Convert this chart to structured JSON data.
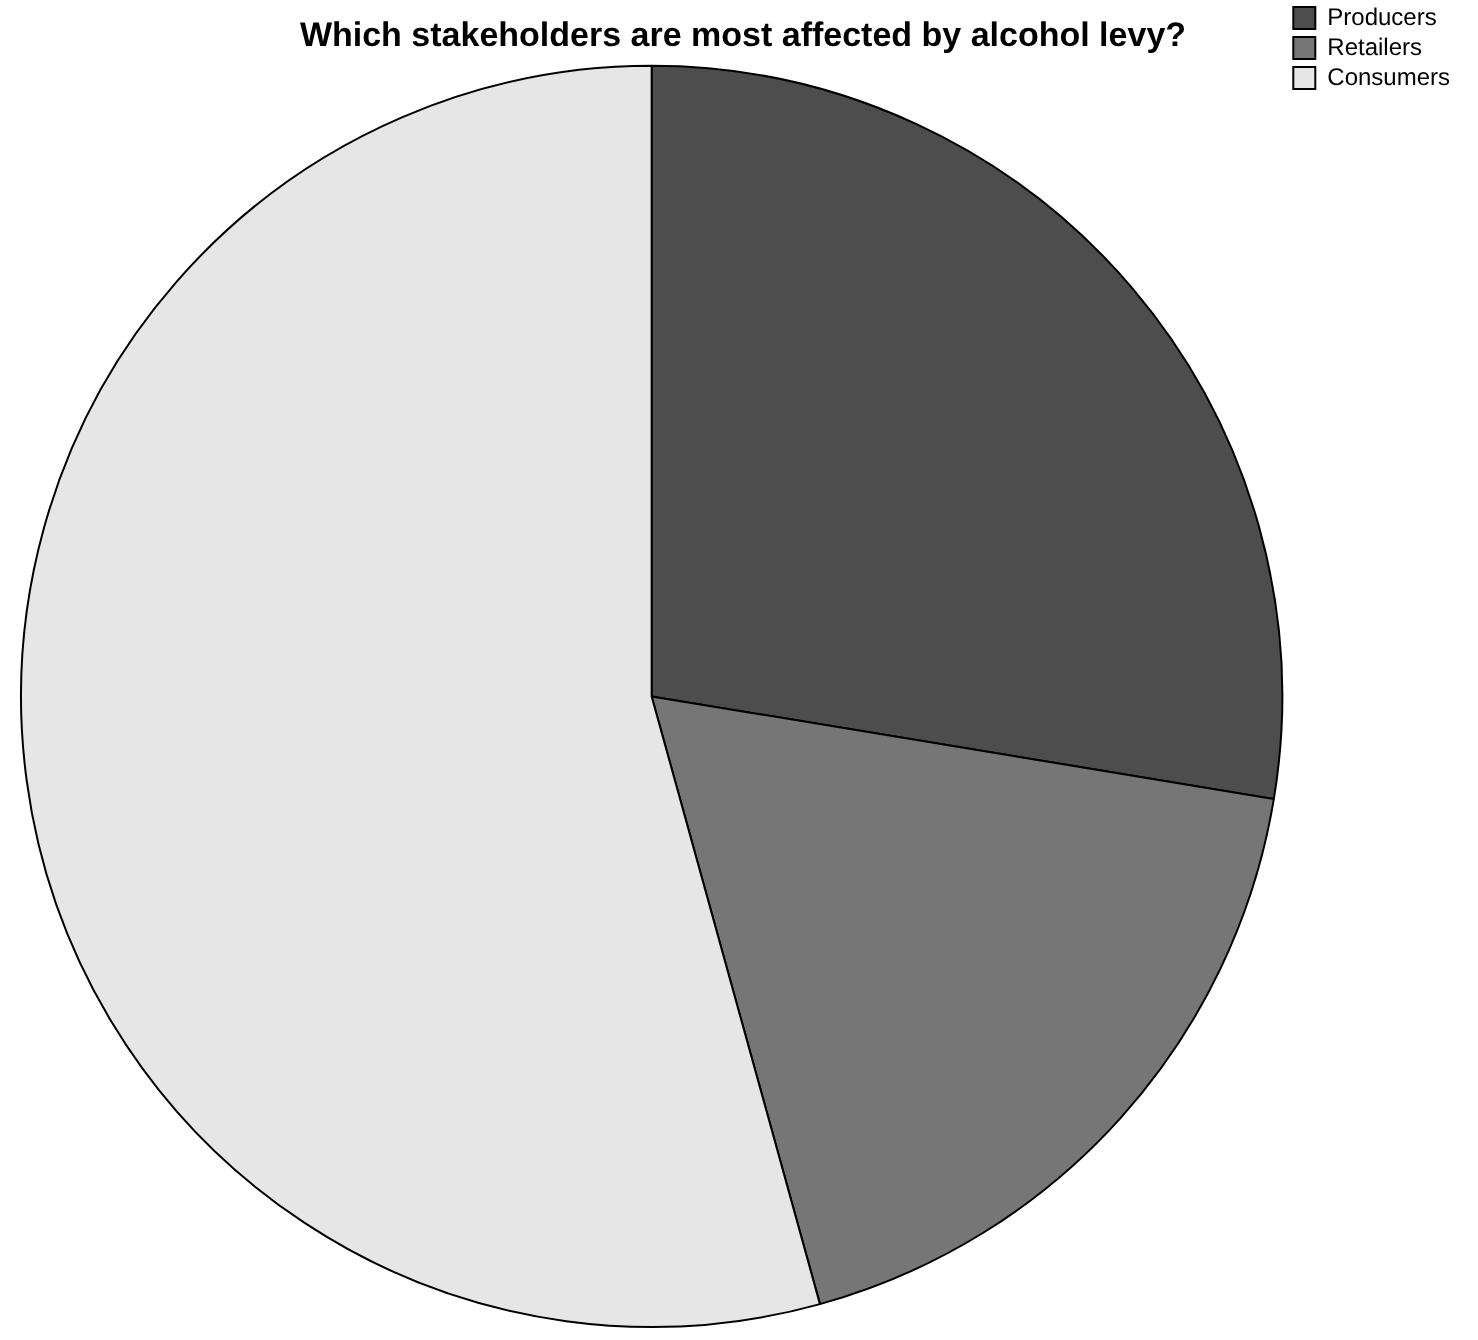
{
  "chart_data": {
    "type": "pie",
    "title": "Which stakeholders are most affected by alcohol levy?",
    "categories": [
      "Producers",
      "Retailers",
      "Consumers"
    ],
    "values": [
      27.6,
      18.1,
      54.3
    ],
    "colors": [
      "#4d4d4d",
      "#767676",
      "#e6e6e6"
    ],
    "legend": "top right"
  }
}
